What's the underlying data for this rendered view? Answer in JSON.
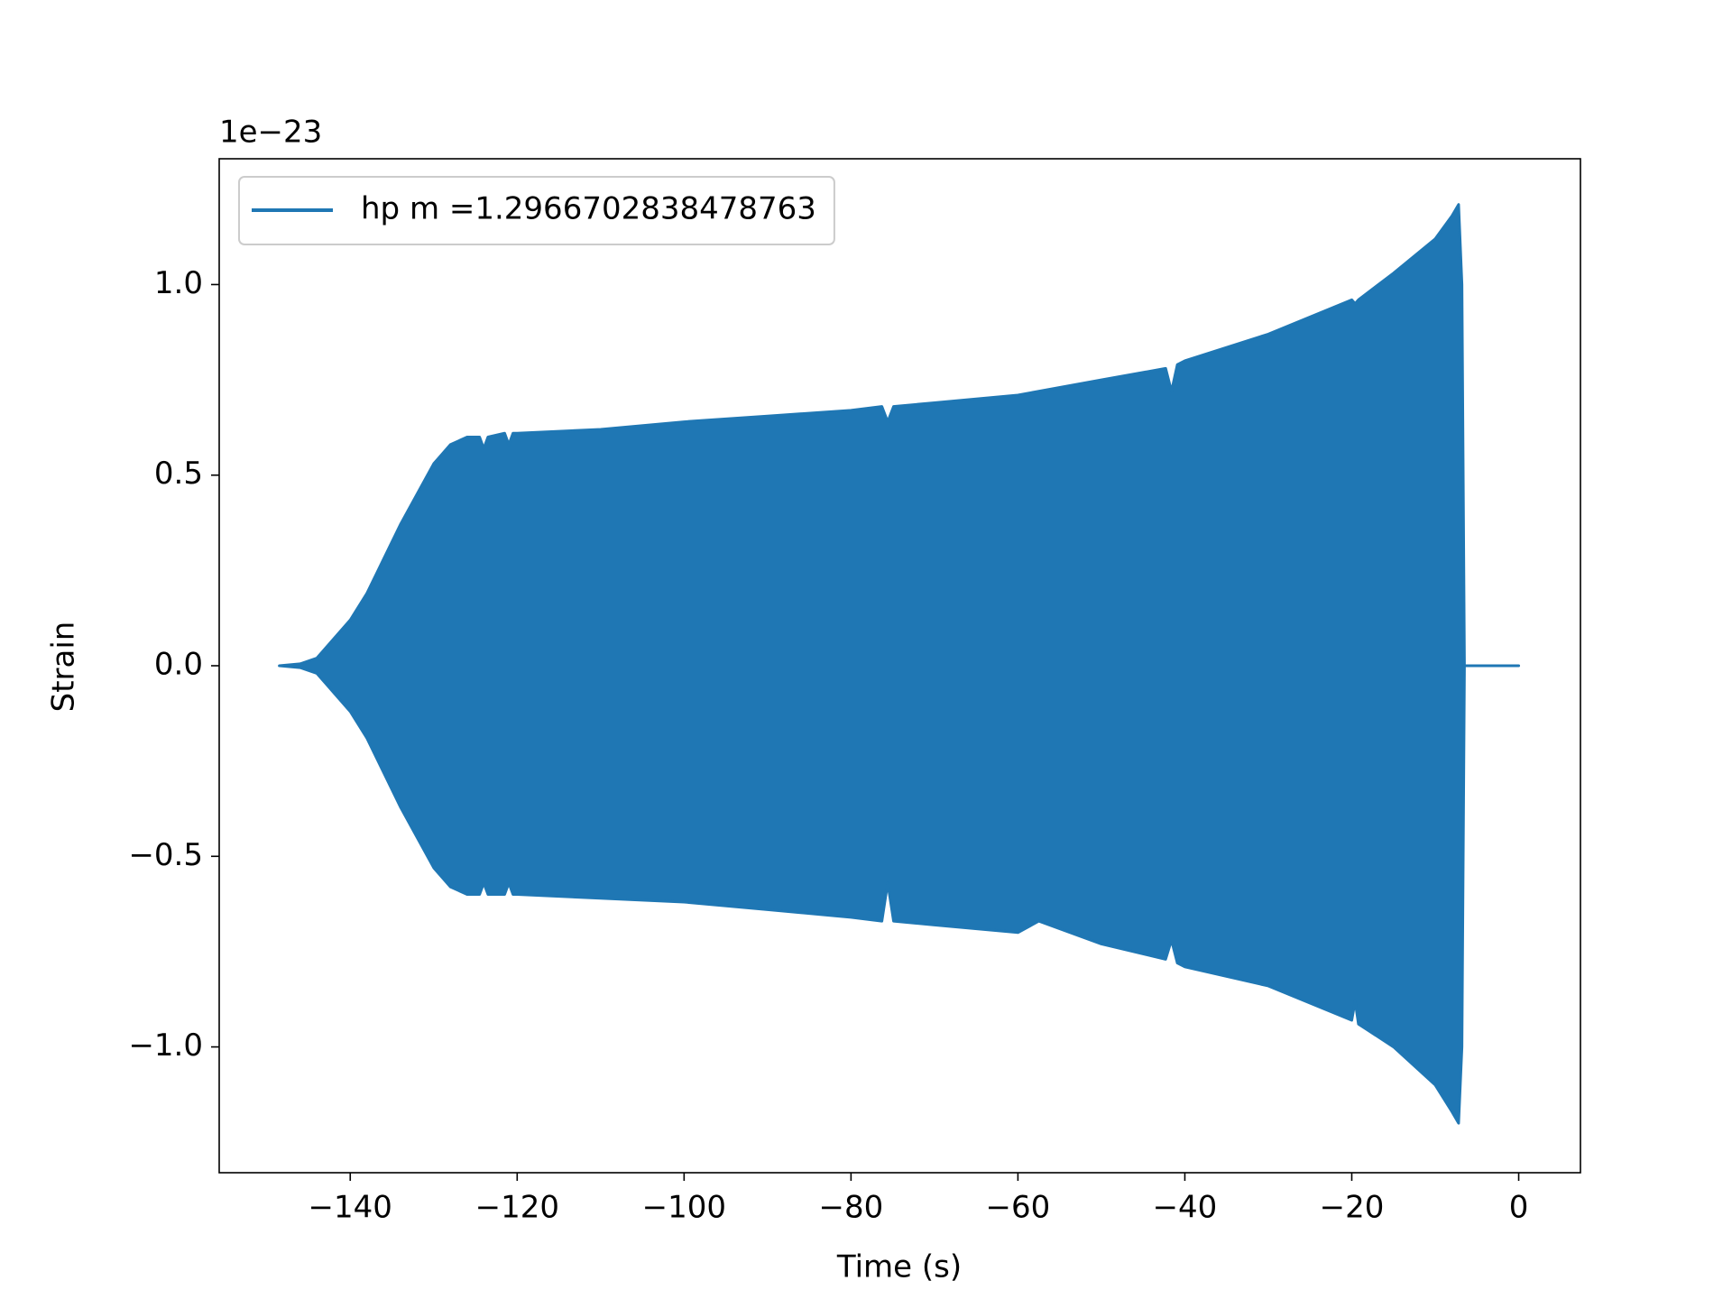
{
  "chart_data": {
    "type": "line",
    "offset_text": "1e−23",
    "xlabel": "Time (s)",
    "ylabel": "Strain",
    "xlim": [
      -155.7,
      7.4
    ],
    "ylim": [
      -1.33,
      1.33
    ],
    "xticks": [
      {
        "value": -140,
        "label": "−140"
      },
      {
        "value": -120,
        "label": "−120"
      },
      {
        "value": -100,
        "label": "−100"
      },
      {
        "value": -80,
        "label": "−80"
      },
      {
        "value": -60,
        "label": "−60"
      },
      {
        "value": -40,
        "label": "−40"
      },
      {
        "value": -20,
        "label": "−20"
      },
      0
    ],
    "yticks": [
      {
        "value": -1.0,
        "label": "−1.0"
      },
      {
        "value": -0.5,
        "label": "−0.5"
      },
      {
        "value": 0.0,
        "label": "0.0"
      },
      {
        "value": 0.5,
        "label": "0.5"
      },
      {
        "value": 1.0,
        "label": "1.0"
      }
    ],
    "grid": false,
    "legend": "upper-left",
    "series": [
      {
        "name": "hp m =1.2966702838478763",
        "color": "#1f77b4",
        "x": [
          -148.5,
          -146,
          -144,
          -142,
          -140,
          -138,
          -136,
          -134,
          -132,
          -130,
          -128,
          -126,
          -124.5,
          -124,
          -123.5,
          -121.5,
          -121,
          -120.5,
          -120,
          -110,
          -100,
          -90,
          -80,
          -76.3,
          -75.6,
          -74.9,
          -70,
          -60,
          -57.5,
          -50,
          -42.3,
          -41.6,
          -40.9,
          -40,
          -30,
          -20,
          -19.6,
          -19.2,
          -15,
          -10,
          -8,
          -7.2,
          -6.8,
          -6.5,
          0
        ],
        "upper": [
          0,
          0.005,
          0.02,
          0.07,
          0.12,
          0.19,
          0.28,
          0.37,
          0.45,
          0.53,
          0.58,
          0.6,
          0.6,
          0.57,
          0.6,
          0.61,
          0.58,
          0.61,
          0.61,
          0.62,
          0.64,
          0.655,
          0.67,
          0.68,
          0.64,
          0.68,
          0.69,
          0.71,
          0.72,
          0.75,
          0.78,
          0.72,
          0.79,
          0.8,
          0.87,
          0.96,
          0.95,
          0.96,
          1.03,
          1.12,
          1.18,
          1.21,
          1.0,
          0,
          0
        ],
        "lower": [
          0,
          -0.005,
          -0.02,
          -0.07,
          -0.12,
          -0.19,
          -0.28,
          -0.37,
          -0.45,
          -0.53,
          -0.58,
          -0.6,
          -0.6,
          -0.57,
          -0.6,
          -0.6,
          -0.57,
          -0.6,
          -0.6,
          -0.61,
          -0.62,
          -0.64,
          -0.66,
          -0.67,
          -0.57,
          -0.67,
          -0.68,
          -0.7,
          -0.67,
          -0.73,
          -0.77,
          -0.72,
          -0.78,
          -0.79,
          -0.84,
          -0.93,
          -0.88,
          -0.94,
          -1.0,
          -1.1,
          -1.17,
          -1.2,
          -1.0,
          0,
          0
        ]
      }
    ]
  }
}
